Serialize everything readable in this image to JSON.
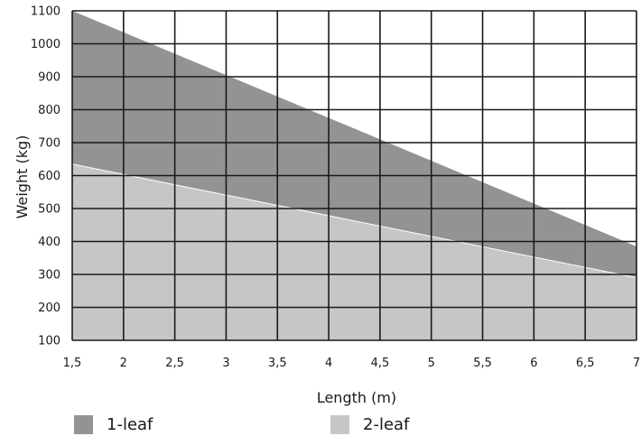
{
  "chart_data": {
    "type": "area",
    "title": "",
    "xlabel": "Length (m)",
    "ylabel": "Weight (kg)",
    "xlim": [
      1.5,
      7
    ],
    "ylim": [
      100,
      1100
    ],
    "x_ticks": [
      "1,5",
      "2",
      "2,5",
      "3",
      "3,5",
      "4",
      "4,5",
      "5",
      "5,5",
      "6",
      "6,5",
      "7"
    ],
    "x_tick_values": [
      1.5,
      2,
      2.5,
      3,
      3.5,
      4,
      4.5,
      5,
      5.5,
      6,
      6.5,
      7
    ],
    "y_ticks": [
      "100",
      "200",
      "300",
      "400",
      "500",
      "600",
      "700",
      "800",
      "900",
      "1000",
      "1100"
    ],
    "y_tick_values": [
      100,
      200,
      300,
      400,
      500,
      600,
      700,
      800,
      900,
      1000,
      1100
    ],
    "grid": true,
    "legend_position": "bottom",
    "series": [
      {
        "name": "1-leaf",
        "color": "#939393",
        "x": [
          1.5,
          7
        ],
        "y": [
          1100,
          385
        ]
      },
      {
        "name": "2-leaf",
        "color": "#c6c6c6",
        "x": [
          1.5,
          7
        ],
        "y": [
          635,
          290
        ]
      }
    ]
  }
}
